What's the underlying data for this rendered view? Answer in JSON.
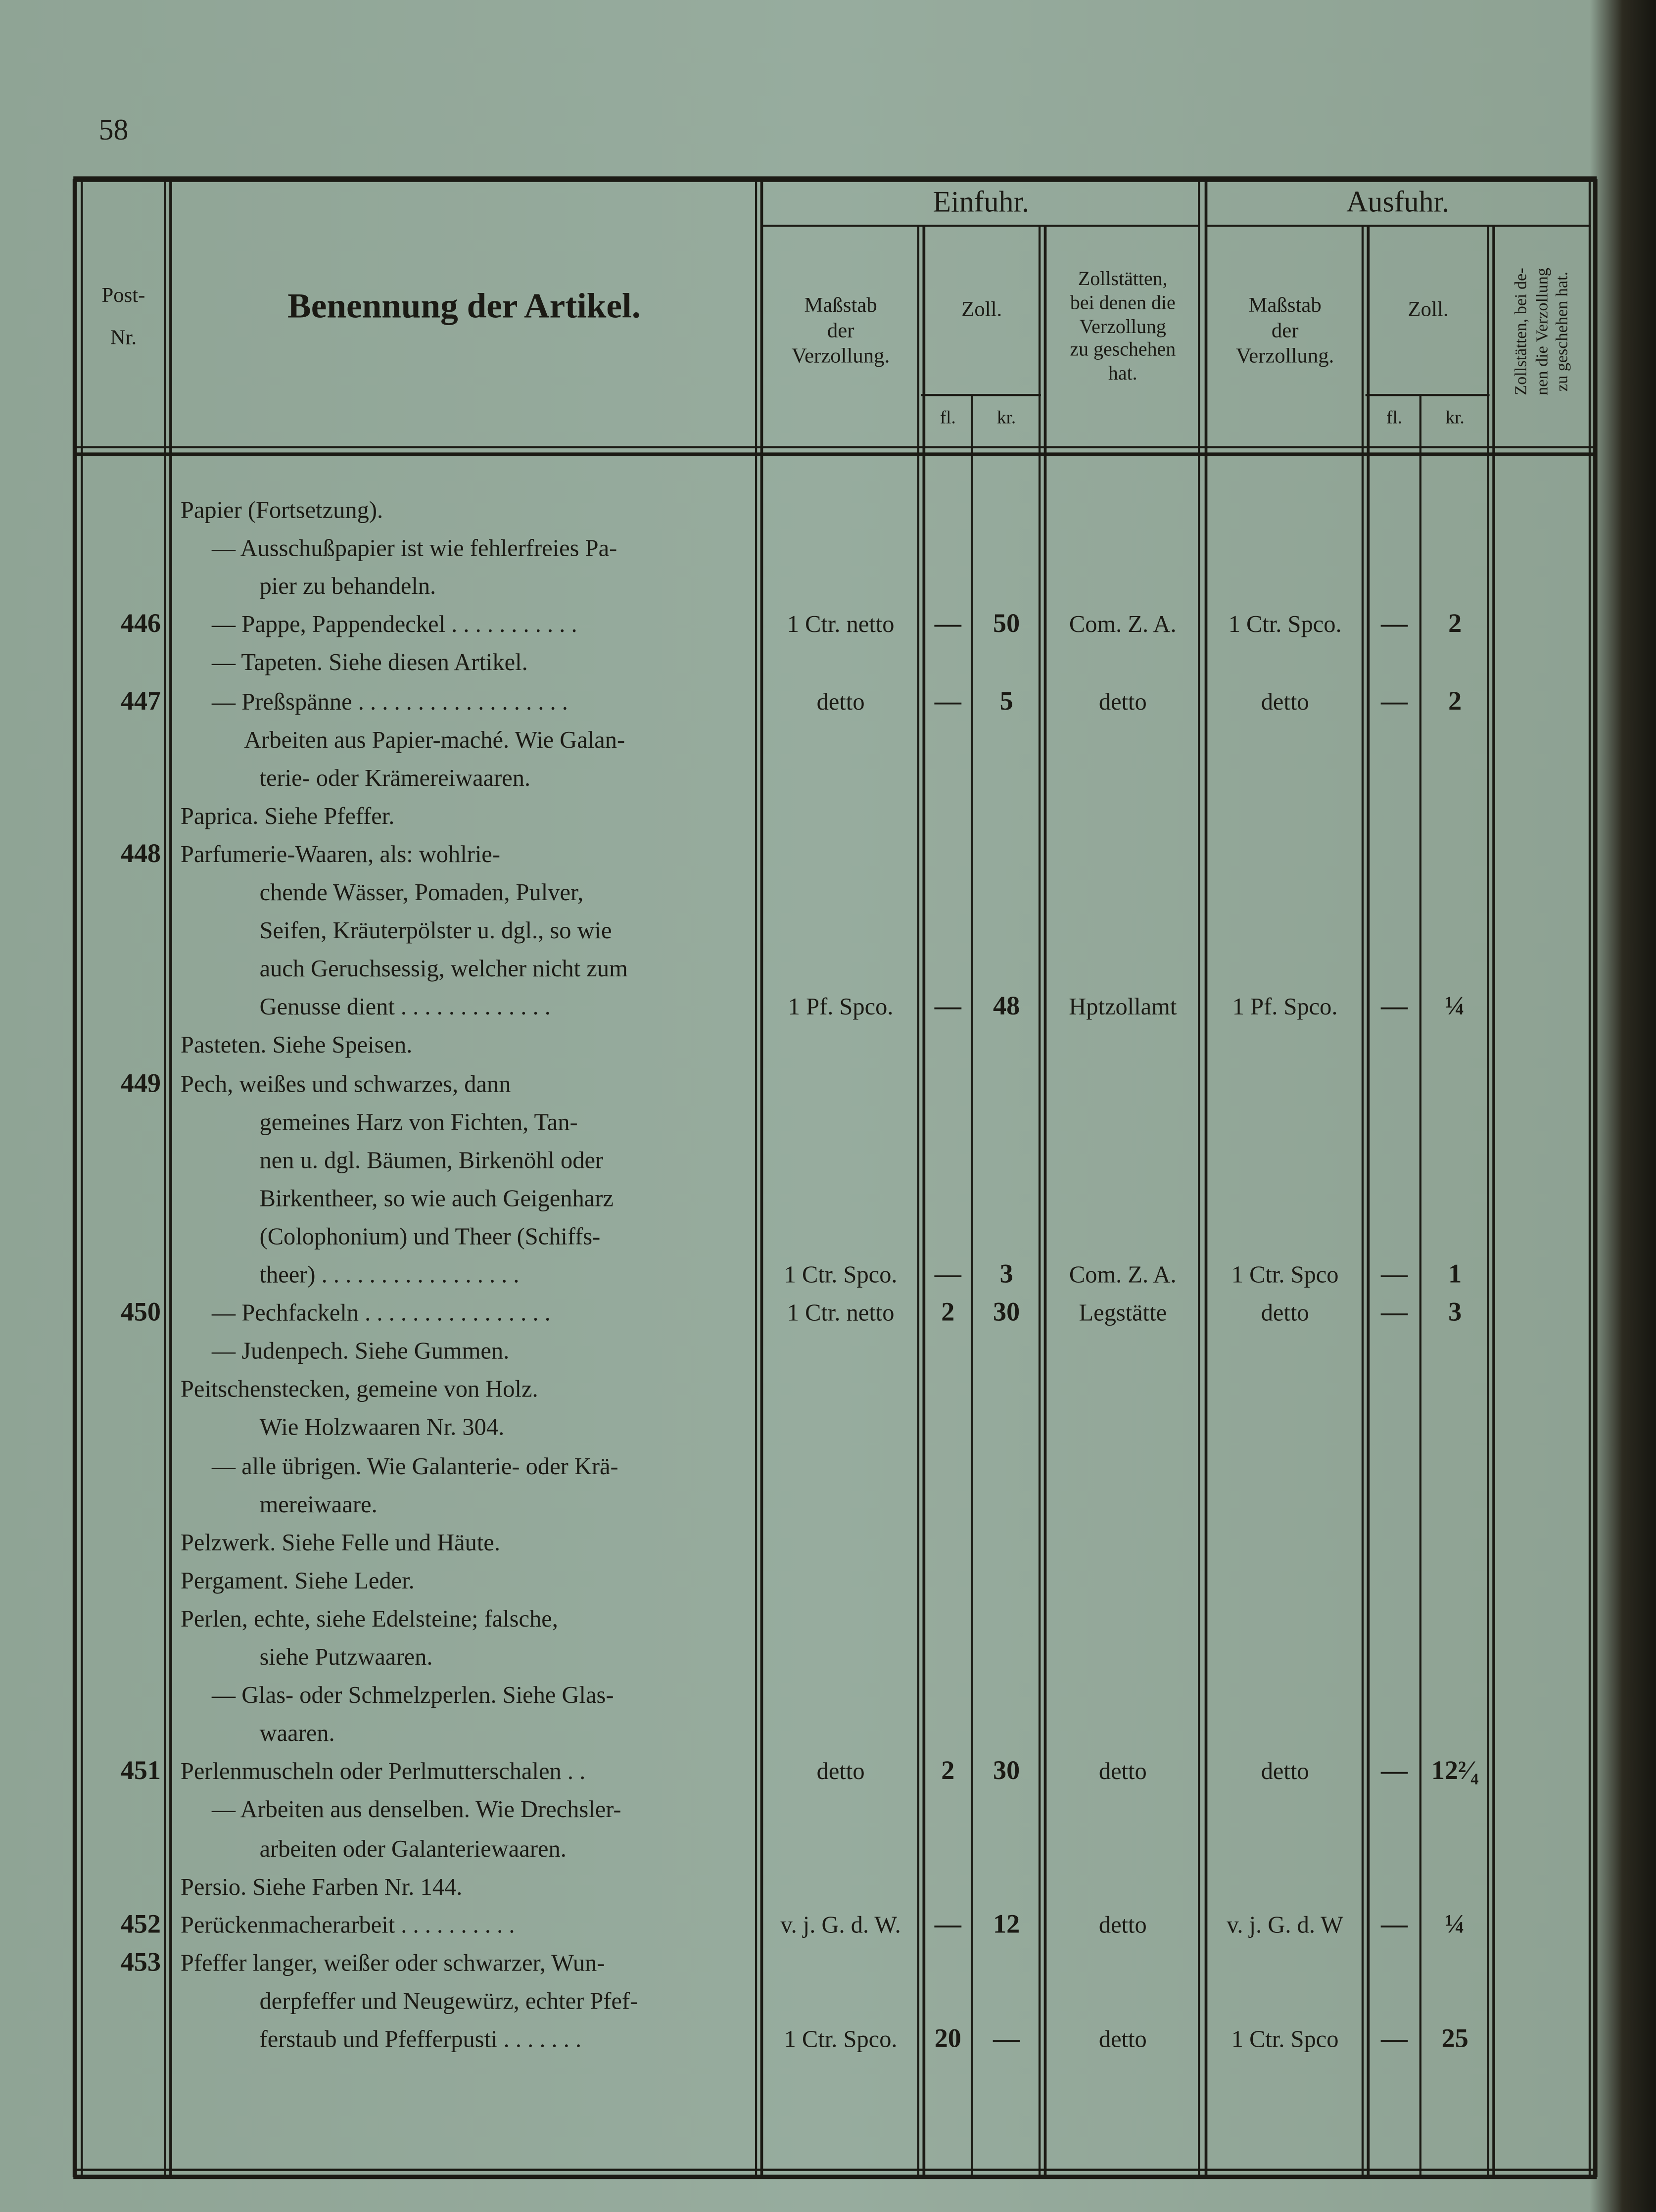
{
  "page_number": "58",
  "header": {
    "einfuhr": "Einfuhr.",
    "ausfuhr": "Ausfuhr.",
    "post_nr": [
      "Post-",
      "Nr."
    ],
    "benennung": "Benennung der Artikel.",
    "einfuhr_massstab": [
      "Maßstab",
      "der",
      "Verzollung."
    ],
    "einfuhr_zoll": "Zoll.",
    "einfuhr_fl": "fl.",
    "einfuhr_kr": "kr.",
    "einfuhr_zollstaetten": [
      "Zollstätten,",
      "bei denen die",
      "Verzollung",
      "zu geschehen",
      "hat."
    ],
    "ausfuhr_massstab": [
      "Maßstab",
      "der",
      "Verzollung."
    ],
    "ausfuhr_zoll": "Zoll.",
    "ausfuhr_fl": "fl.",
    "ausfuhr_kr": "kr.",
    "ausfuhr_zollstaetten": [
      "Zollstätten, bei de-",
      "nen die Verzollung",
      "zu geschehen hat."
    ]
  },
  "entries": [
    {
      "lines": [
        "Papier (Fortsetzung)."
      ]
    },
    {
      "lines": [
        "— Ausschußpapier ist wie fehlerfreies Pa-",
        "pier zu behandeln."
      ]
    },
    {
      "number": 446,
      "lines": [
        "— Pappe, Pappendeckel . . . . . . . . . . ."
      ],
      "values": [
        "1 Ctr. netto",
        "—",
        "50",
        "Com. Z. A.",
        "1 Ctr. Spco.",
        "—",
        "2"
      ]
    },
    {
      "lines": [
        "— Tapeten. Siehe diesen Artikel."
      ]
    },
    {
      "number": 447,
      "lines": [
        "— Preßspänne . . . . . . . . . . . . . . . . . ."
      ],
      "values": [
        "detto",
        "—",
        "5",
        "detto",
        "detto",
        "—",
        "2"
      ]
    },
    {
      "lines": [
        "Arbeiten aus Papier-maché. Wie Galan-",
        "terie- oder Krämereiwaaren."
      ]
    },
    {
      "lines": [
        "Paprica. Siehe Pfeffer."
      ]
    },
    {
      "number": 448,
      "lines": [
        "Parfumerie-Waaren, als: wohlrie-",
        "chende Wässer, Pomaden, Pulver,",
        "Seifen, Kräuterpölster u. dgl., so wie",
        "auch Geruchsessig, welcher nicht zum",
        "Genusse dient . . . . . . . . . . . . ."
      ],
      "values": [
        "1 Pf. Spco.",
        "—",
        "48",
        "Hptzollamt",
        "1 Pf. Spco.",
        "—",
        "¼"
      ]
    },
    {
      "lines": [
        "Pasteten. Siehe Speisen."
      ]
    },
    {
      "number": 449,
      "lines": [
        "Pech, weißes und schwarzes, dann",
        "gemeines Harz von Fichten, Tan-",
        "nen u. dgl. Bäumen, Birkenöhl oder",
        "Birkentheer, so wie auch Geigenharz",
        "(Colophonium) und Theer (Schiffs-",
        "theer) . . . . . . . . . . . . . . . . ."
      ],
      "values": [
        "1 Ctr. Spco.",
        "—",
        "3",
        "Com. Z. A.",
        "1 Ctr. Spco",
        "—",
        "1"
      ]
    },
    {
      "number": 450,
      "lines": [
        "— Pechfackeln . . . . . . . . . . . . . . . ."
      ],
      "values": [
        "1 Ctr. netto",
        "2",
        "30",
        "Legstätte",
        "detto",
        "—",
        "3"
      ]
    },
    {
      "lines": [
        "— Judenpech. Siehe Gummen."
      ]
    },
    {
      "lines": [
        "Peitschenstecken, gemeine von Holz.",
        "Wie Holzwaaren Nr. 304."
      ]
    },
    {
      "lines": [
        "— alle übrigen. Wie Galanterie- oder Krä-",
        "mereiwaare."
      ]
    },
    {
      "lines": [
        "Pelzwerk. Siehe Felle und Häute."
      ]
    },
    {
      "lines": [
        "Pergament. Siehe Leder."
      ]
    },
    {
      "lines": [
        "Perlen, echte, siehe Edelsteine; falsche,",
        "siehe Putzwaaren."
      ]
    },
    {
      "lines": [
        "— Glas- oder Schmelzperlen. Siehe Glas-",
        "waaren."
      ]
    },
    {
      "number": 451,
      "lines": [
        "Perlenmuscheln oder Perlmutterschalen . ."
      ],
      "values": [
        "detto",
        "2",
        "30",
        "detto",
        "detto",
        "—",
        "12²⁄₄"
      ]
    },
    {
      "lines": [
        "— Arbeiten aus denselben. Wie Drechsler-",
        "arbeiten oder Galanteriewaaren."
      ]
    },
    {
      "lines": [
        "Persio. Siehe Farben Nr. 144."
      ]
    },
    {
      "number": 452,
      "lines": [
        "Perückenmacherarbeit . . . . . . . . . ."
      ],
      "values": [
        "v. j. G. d. W.",
        "—",
        "12",
        "detto",
        "v. j. G. d. W",
        "—",
        "¼"
      ]
    },
    {
      "number": 453,
      "lines": [
        "Pfeffer langer, weißer oder schwarzer, Wun-",
        "derpfeffer und Neugewürz, echter Pfef-",
        "ferstaub und Pfefferpusti . . . . . . ."
      ],
      "values": [
        "1 Ctr. Spco.",
        "20",
        "—",
        "detto",
        "1 Ctr. Spco",
        "—",
        "25"
      ]
    }
  ]
}
